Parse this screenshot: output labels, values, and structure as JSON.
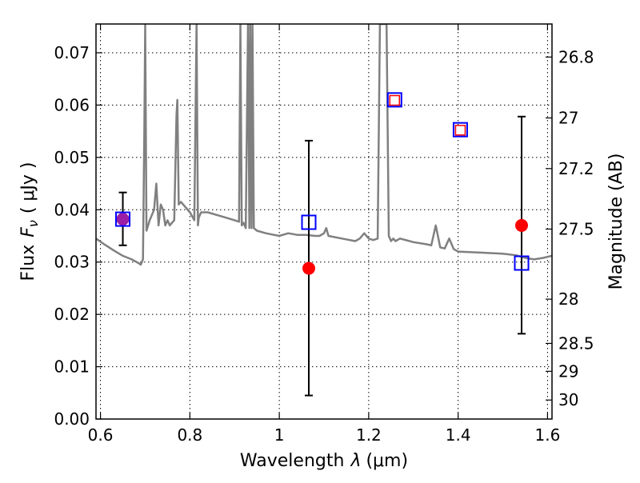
{
  "chart_data": {
    "type": "scatter",
    "xlabel": "Wavelength",
    "xlabel_symbol": "λ",
    "xlabel_unit": "(μm)",
    "ylabel": "Flux",
    "ylabel_symbol": "F",
    "ylabel_subscript": "ν",
    "ylabel_unit": "( μJy )",
    "y2label": "Magnitude (AB)",
    "xlim": [
      0.59,
      1.61
    ],
    "ylim": [
      0.0,
      0.0755
    ],
    "grid": true,
    "xticks": [
      0.6,
      0.8,
      1.0,
      1.2,
      1.4,
      1.6
    ],
    "xtick_labels": [
      "0.6",
      "0.8",
      "1",
      "1.2",
      "1.4",
      "1.6"
    ],
    "yticks": [
      0.0,
      0.01,
      0.02,
      0.03,
      0.04,
      0.05,
      0.06,
      0.07
    ],
    "ytick_labels": [
      "0.00",
      "0.01",
      "0.02",
      "0.03",
      "0.04",
      "0.05",
      "0.06",
      "0.07"
    ],
    "y2ticks": [
      {
        "label": "26.8",
        "mag": 26.8
      },
      {
        "label": "27",
        "mag": 27.0
      },
      {
        "label": "27.2",
        "mag": 27.2
      },
      {
        "label": "27.5",
        "mag": 27.5
      },
      {
        "label": "28",
        "mag": 28.0
      },
      {
        "label": "28.5",
        "mag": 28.5
      },
      {
        "label": "29",
        "mag": 29.0
      },
      {
        "label": "30",
        "mag": 30.0
      }
    ],
    "colors": {
      "spectrum": "#808080",
      "observed": "#ff0000",
      "model": "#0000ff",
      "errorbar": "#000000",
      "blend": "#9a1fa6"
    },
    "series": [
      {
        "kind": "line",
        "x": [
          0.59,
          0.61,
          0.63,
          0.65,
          0.67,
          0.685,
          0.69,
          0.695,
          0.698,
          0.7,
          0.703,
          0.71,
          0.72,
          0.725,
          0.73,
          0.735,
          0.74,
          0.745,
          0.75,
          0.755,
          0.76,
          0.765,
          0.77,
          0.772,
          0.775,
          0.78,
          0.79,
          0.8,
          0.81,
          0.815,
          0.818,
          0.82,
          0.825,
          0.84,
          0.86,
          0.88,
          0.9,
          0.91,
          0.913,
          0.916,
          0.92,
          0.925,
          0.93,
          0.933,
          0.935,
          0.938,
          0.94,
          0.943,
          0.95,
          0.97,
          1.0,
          1.02,
          1.04,
          1.06,
          1.08,
          1.09,
          1.1,
          1.105,
          1.11,
          1.14,
          1.17,
          1.18,
          1.19,
          1.2,
          1.21,
          1.22,
          1.225,
          1.23,
          1.235,
          1.24,
          1.245,
          1.25,
          1.255,
          1.26,
          1.27,
          1.3,
          1.33,
          1.34,
          1.35,
          1.36,
          1.37,
          1.38,
          1.39,
          1.4,
          1.45,
          1.5,
          1.53,
          1.55,
          1.57,
          1.59,
          1.61
        ],
        "y": [
          0.0345,
          0.0333,
          0.0322,
          0.0312,
          0.0305,
          0.0298,
          0.0295,
          0.0305,
          0.055,
          0.0755,
          0.036,
          0.038,
          0.04,
          0.045,
          0.037,
          0.041,
          0.04,
          0.037,
          0.038,
          0.037,
          0.0375,
          0.038,
          0.058,
          0.061,
          0.041,
          0.0415,
          0.0405,
          0.0395,
          0.038,
          0.0755,
          0.037,
          0.0385,
          0.0395,
          0.0395,
          0.039,
          0.0385,
          0.038,
          0.0377,
          0.0755,
          0.037,
          0.0375,
          0.0365,
          0.0755,
          0.0365,
          0.0755,
          0.0365,
          0.0755,
          0.0365,
          0.036,
          0.0355,
          0.035,
          0.0355,
          0.0352,
          0.0352,
          0.035,
          0.035,
          0.0355,
          0.0365,
          0.035,
          0.0345,
          0.034,
          0.0345,
          0.0355,
          0.0345,
          0.0342,
          0.0345,
          0.0755,
          0.0755,
          0.0755,
          0.0755,
          0.035,
          0.034,
          0.0345,
          0.034,
          0.0345,
          0.0338,
          0.0334,
          0.0332,
          0.037,
          0.0328,
          0.0326,
          0.0345,
          0.0325,
          0.032,
          0.0318,
          0.0316,
          0.0313,
          0.0308,
          0.0305,
          0.0308,
          0.0312
        ]
      },
      {
        "kind": "errorbar",
        "x": [
          0.65,
          1.066,
          1.542
        ],
        "y": [
          0.0382,
          0.0288,
          0.037
        ],
        "yerr_low": [
          0.0332,
          0.0045,
          0.0163
        ],
        "yerr_high": [
          0.0433,
          0.0532,
          0.0578
        ]
      },
      {
        "kind": "observed",
        "x": [
          0.65,
          1.066,
          1.542,
          1.258,
          1.405
        ],
        "y": [
          0.0382,
          0.0288,
          0.037,
          0.0609,
          0.0552
        ]
      },
      {
        "kind": "model",
        "x": [
          0.65,
          1.066,
          1.258,
          1.405,
          1.542
        ],
        "y": [
          0.0382,
          0.0376,
          0.061,
          0.0553,
          0.0298
        ]
      }
    ]
  }
}
